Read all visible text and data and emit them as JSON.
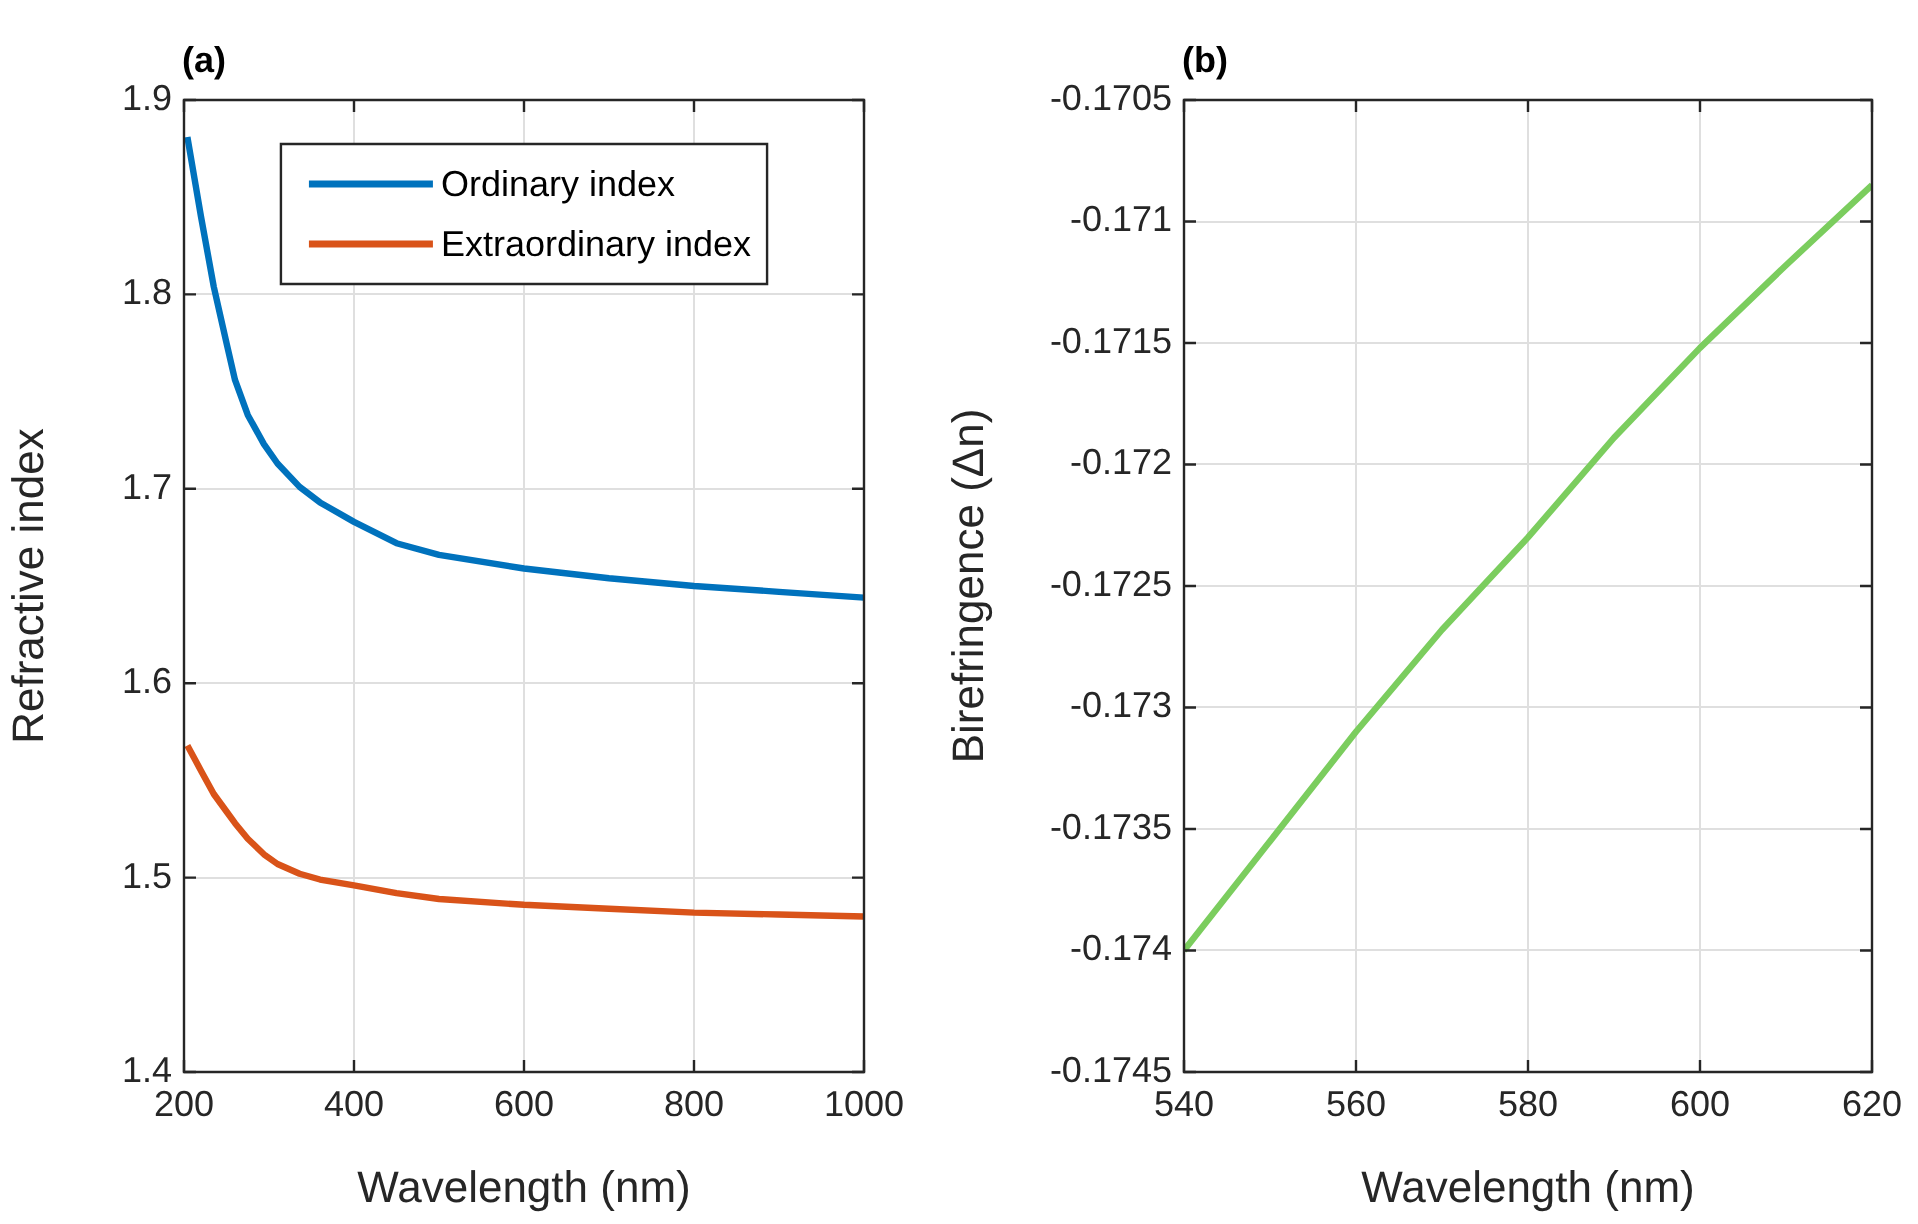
{
  "chart_data": [
    {
      "type": "line",
      "title": "(a)",
      "xlabel": "Wavelength (nm)",
      "ylabel": "Refractive index",
      "x": [
        204,
        220,
        235,
        250,
        260,
        275,
        294,
        310,
        336,
        360,
        400,
        450,
        500,
        600,
        700,
        800,
        900,
        1000
      ],
      "series": [
        {
          "name": "Ordinary index",
          "color": "#0072bd",
          "values": [
            1.881,
            1.84,
            1.804,
            1.775,
            1.756,
            1.738,
            1.723,
            1.713,
            1.701,
            1.693,
            1.683,
            1.672,
            1.666,
            1.659,
            1.654,
            1.65,
            1.647,
            1.644
          ]
        },
        {
          "name": "Extraordinary index",
          "color": "#d95319",
          "values": [
            1.568,
            1.555,
            1.543,
            1.534,
            1.528,
            1.52,
            1.512,
            1.507,
            1.502,
            1.499,
            1.496,
            1.492,
            1.489,
            1.486,
            1.484,
            1.482,
            1.481,
            1.48
          ]
        }
      ],
      "xlim": [
        200,
        1000
      ],
      "xticks": [
        200,
        400,
        600,
        800,
        1000
      ],
      "ylim": [
        1.4,
        1.9
      ],
      "yticks": [
        1.4,
        1.5,
        1.6,
        1.7,
        1.8,
        1.9
      ],
      "grid": true,
      "legend": "top",
      "marker": "none",
      "line_style": "solid"
    },
    {
      "type": "line",
      "title": "(b)",
      "xlabel": "Wavelength (nm)",
      "ylabel": "Birefringence (Δn)",
      "x": [
        540,
        550,
        560,
        570,
        580,
        590,
        600,
        610,
        620
      ],
      "series": [
        {
          "color": "#7bcd5e",
          "values": [
            -0.174,
            -0.17355,
            -0.1731,
            -0.17268,
            -0.1723,
            -0.17189,
            -0.17152,
            -0.17118,
            -0.17085
          ]
        }
      ],
      "xlim": [
        540,
        620
      ],
      "xticks": [
        540,
        560,
        580,
        600,
        620
      ],
      "ylim": [
        -0.1745,
        -0.1705
      ],
      "yticks": [
        -0.1745,
        -0.174,
        -0.1735,
        -0.173,
        -0.1725,
        -0.172,
        -0.1715,
        -0.171,
        -0.1705
      ],
      "grid": true,
      "marker": "none",
      "line_style": "solid"
    }
  ]
}
